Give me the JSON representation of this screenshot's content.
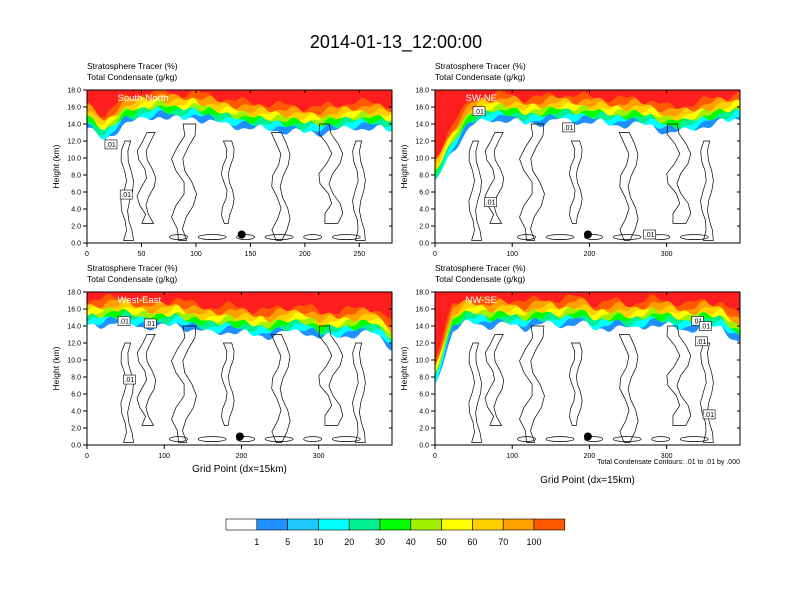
{
  "page": {
    "title": "2014-01-13_12:00:00"
  },
  "colors": {
    "scale": [
      "#ffffff",
      "#1e90ff",
      "#1ec8ff",
      "#00ffff",
      "#00f090",
      "#00ff00",
      "#a0f000",
      "#ffff00",
      "#ffd000",
      "#ffa000",
      "#ff5a00",
      "#ff1e1e"
    ],
    "contour": "#000000"
  },
  "chart_data": [
    {
      "type": "heatmap",
      "title_lines": [
        "Stratosphere Tracer   (%)",
        "Total Condensate   (g/kg)"
      ],
      "inset_label": "South-North",
      "ylabel": "Height (km)",
      "xlabel": "",
      "xlim": [
        0,
        280
      ],
      "ylim": [
        0,
        18
      ],
      "xticks": [
        "0",
        "50",
        "100",
        "150",
        "200",
        "250"
      ],
      "xtick_values": [
        0,
        50,
        100,
        150,
        200,
        250
      ],
      "yticks": [
        "0.0",
        "2.0",
        "4.0",
        "6.0",
        "8.0",
        "10.0",
        "12.0",
        "14.0",
        "16.0",
        "18.0"
      ],
      "marker_x": 142,
      "tracer_base_km": [
        13.5,
        12.0,
        14.0,
        14.5,
        15.0,
        14.5,
        14.8,
        14.2,
        13.9,
        13.5,
        13.4,
        13.2,
        13.0,
        13.0,
        13.3,
        13.6,
        13.5,
        13.2
      ],
      "contour_labels": [
        {
          "x": 22,
          "y": 11.6,
          "text": ".01"
        },
        {
          "x": 36,
          "y": 5.7,
          "text": ".01"
        }
      ]
    },
    {
      "type": "heatmap",
      "title_lines": [
        "Stratosphere Tracer   (%)",
        "Total Condensate   (g/kg)"
      ],
      "inset_label": "SW-NE",
      "ylabel": "Height (km)",
      "xlabel": "",
      "xlim": [
        0,
        395
      ],
      "ylim": [
        0,
        18
      ],
      "xticks": [
        "0",
        "100",
        "200",
        "300"
      ],
      "xtick_values": [
        0,
        100,
        200,
        300
      ],
      "yticks": [
        "0.0",
        "2.0",
        "4.0",
        "6.0",
        "8.0",
        "10.0",
        "12.0",
        "14.0",
        "16.0",
        "18.0"
      ],
      "marker_x": 198,
      "tracer_base_km": [
        7.0,
        11.0,
        13.8,
        14.5,
        14.5,
        14.0,
        14.2,
        14.5,
        14.3,
        14.2,
        13.9,
        14.0,
        13.8,
        13.0,
        13.2,
        13.8,
        14.2,
        14.6
      ],
      "contour_labels": [
        {
          "x": 57,
          "y": 15.5,
          "text": ".01"
        },
        {
          "x": 173,
          "y": 13.6,
          "text": ".01"
        },
        {
          "x": 72,
          "y": 4.8,
          "text": ".01"
        },
        {
          "x": 278,
          "y": 1.0,
          "text": ".01"
        }
      ]
    },
    {
      "type": "heatmap",
      "title_lines": [
        "Stratosphere Tracer   (%)",
        "Total Condensate   (g/kg)"
      ],
      "inset_label": "West-East",
      "ylabel": "Height (km)",
      "xlabel": "Grid Point (dx=15km)",
      "xlim": [
        0,
        395
      ],
      "ylim": [
        0,
        18
      ],
      "xticks": [
        "0",
        "100",
        "200",
        "300"
      ],
      "xtick_values": [
        0,
        100,
        200,
        300
      ],
      "yticks": [
        "0.0",
        "2.0",
        "4.0",
        "6.0",
        "8.0",
        "10.0",
        "12.0",
        "14.0",
        "16.0",
        "18.0"
      ],
      "marker_x": 198,
      "tracer_base_km": [
        14.0,
        14.2,
        14.5,
        14.0,
        13.8,
        14.2,
        13.5,
        13.2,
        13.4,
        13.0,
        12.8,
        13.2,
        13.5,
        12.6,
        12.8,
        13.0,
        13.2,
        11.5
      ],
      "contour_labels": [
        {
          "x": 55,
          "y": 7.7,
          "text": ".01"
        },
        {
          "x": 82,
          "y": 14.3,
          "text": ".01"
        },
        {
          "x": 48,
          "y": 14.6,
          "text": ".01"
        }
      ]
    },
    {
      "type": "heatmap",
      "title_lines": [
        "Stratosphere Tracer   (%)",
        "Total Condensate   (g/kg)"
      ],
      "inset_label": "NW-SE",
      "ylabel": "Height (km)",
      "xlabel": "Grid Point (dx=15km)",
      "note": "Total Condensate Contours: .01 to .01 by .000",
      "xlim": [
        0,
        395
      ],
      "ylim": [
        0,
        18
      ],
      "xticks": [
        "0",
        "100",
        "200",
        "300"
      ],
      "xtick_values": [
        0,
        100,
        200,
        300
      ],
      "yticks": [
        "0.0",
        "2.0",
        "4.0",
        "6.0",
        "8.0",
        "10.0",
        "12.0",
        "14.0",
        "16.0",
        "18.0"
      ],
      "marker_x": 198,
      "tracer_base_km": [
        7.0,
        13.5,
        14.5,
        14.0,
        14.2,
        13.8,
        14.3,
        14.0,
        14.5,
        13.5,
        14.0,
        13.6,
        14.2,
        14.0,
        13.5,
        14.0,
        13.8,
        12.0
      ],
      "contour_labels": [
        {
          "x": 340,
          "y": 14.6,
          "text": ".01"
        },
        {
          "x": 350,
          "y": 14.0,
          "text": ".01"
        },
        {
          "x": 345,
          "y": 12.2,
          "text": ".01"
        },
        {
          "x": 355,
          "y": 3.6,
          "text": ".01"
        }
      ]
    }
  ],
  "colorbar": {
    "labels": [
      "1",
      "5",
      "10",
      "20",
      "30",
      "40",
      "50",
      "60",
      "70",
      "100"
    ]
  }
}
